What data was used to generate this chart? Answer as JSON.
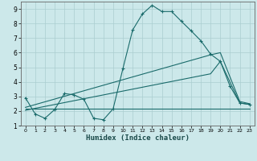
{
  "xlabel": "Humidex (Indice chaleur)",
  "bg_color": "#cce8ea",
  "grid_color": "#aacdd0",
  "line_color": "#1a6b6b",
  "xlim": [
    -0.5,
    23.5
  ],
  "ylim": [
    1,
    9.5
  ],
  "yticks": [
    1,
    2,
    3,
    4,
    5,
    6,
    7,
    8,
    9
  ],
  "xticks": [
    0,
    1,
    2,
    3,
    4,
    5,
    6,
    7,
    8,
    9,
    10,
    11,
    12,
    13,
    14,
    15,
    16,
    17,
    18,
    19,
    20,
    21,
    22,
    23
  ],
  "line1_x": [
    0,
    1,
    2,
    3,
    4,
    5,
    6,
    7,
    8,
    9,
    10,
    11,
    12,
    13,
    14,
    15,
    16,
    17,
    18,
    19,
    20,
    21,
    22,
    23
  ],
  "line1_y": [
    2.9,
    1.8,
    1.5,
    2.1,
    3.2,
    3.1,
    2.8,
    1.5,
    1.4,
    2.15,
    4.9,
    7.55,
    8.65,
    9.25,
    8.82,
    8.82,
    8.15,
    7.5,
    6.82,
    5.9,
    5.4,
    3.7,
    2.55,
    2.45
  ],
  "line2_x": [
    0,
    23
  ],
  "line2_y": [
    2.15,
    2.15
  ],
  "line3_x": [
    0,
    19,
    20,
    22,
    23
  ],
  "line3_y": [
    2.05,
    4.55,
    5.4,
    2.55,
    2.45
  ],
  "line4_x": [
    0,
    19,
    20,
    22,
    23
  ],
  "line4_y": [
    2.25,
    5.85,
    6.0,
    2.65,
    2.5
  ]
}
